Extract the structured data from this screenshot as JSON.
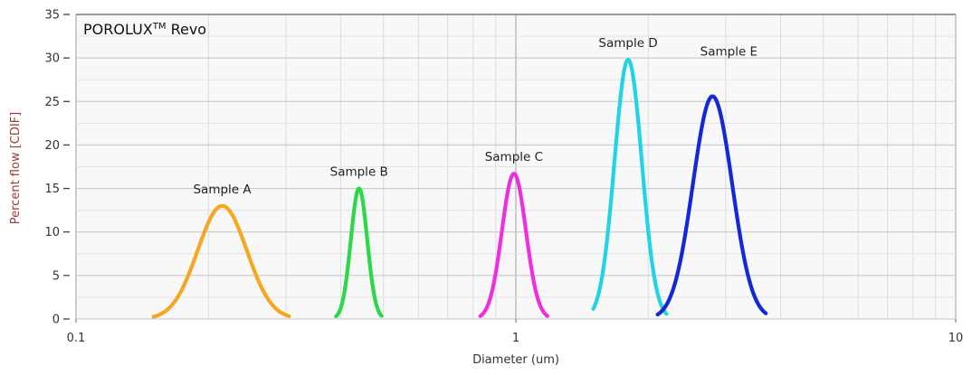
{
  "chart_data": {
    "type": "line",
    "title": "POROLUX",
    "title_superscript": "TM",
    "title_suffix": " Revo",
    "xlabel": "Diameter (um)",
    "ylabel": "Percent flow [CDIF]",
    "x_scale": "log",
    "xlim": [
      0.1,
      10
    ],
    "ylim": [
      0,
      35
    ],
    "x_ticks": [
      0.1,
      1,
      10
    ],
    "x_tick_labels": [
      "0.1",
      "1",
      "10"
    ],
    "y_ticks": [
      0,
      5,
      10,
      15,
      20,
      25,
      30,
      35
    ],
    "y_tick_labels": [
      "0",
      "5",
      "10",
      "15",
      "20",
      "25",
      "30",
      "35"
    ],
    "grid": true,
    "series": [
      {
        "name": "Sample A",
        "color": "#f5a623",
        "peak_x": 0.215,
        "peak_y": 13,
        "x_min": 0.15,
        "x_max": 0.305
      },
      {
        "name": "Sample B",
        "color": "#2bd84a",
        "peak_x": 0.44,
        "peak_y": 15,
        "x_min": 0.39,
        "x_max": 0.495
      },
      {
        "name": "Sample C",
        "color": "#ee2fe0",
        "peak_x": 0.99,
        "peak_y": 16.7,
        "x_min": 0.83,
        "x_max": 1.18
      },
      {
        "name": "Sample D",
        "color": "#22d3e6",
        "peak_x": 1.8,
        "peak_y": 29.8,
        "x_min": 1.5,
        "x_max": 2.2
      },
      {
        "name": "Sample E",
        "color": "#1428d8",
        "peak_x": 2.8,
        "peak_y": 25.6,
        "x_min": 2.1,
        "x_max": 3.7
      }
    ]
  }
}
